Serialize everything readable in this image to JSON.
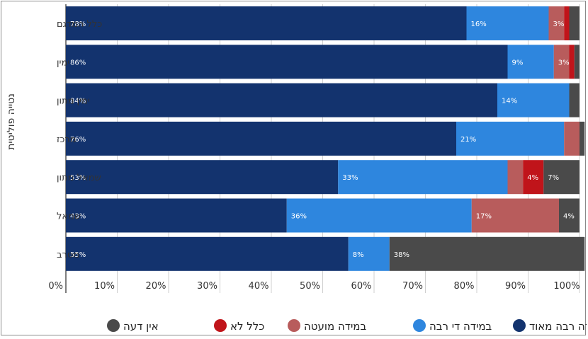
{
  "chart_data": {
    "type": "bar",
    "orientation": "horizontal",
    "stacked": true,
    "ylabel": "נטייה פוליטית",
    "categories": [
      "כלל המדגם",
      "ימין",
      "ימין מתון",
      "מרכז",
      "שמאל מתון",
      "שמאל",
      "מסרב"
    ],
    "series": [
      {
        "name": "במידה רבה מאוד",
        "color": "#13336e",
        "values": [
          78,
          86,
          84,
          76,
          53,
          43,
          55
        ],
        "labels": [
          "78%",
          "86%",
          "84%",
          "76%",
          "53%",
          "43%",
          "55%"
        ]
      },
      {
        "name": "במידה די רבה",
        "color": "#2e86de",
        "values": [
          16,
          9,
          14,
          21,
          33,
          36,
          8
        ],
        "labels": [
          "16%",
          "9%",
          "14%",
          "21%",
          "33%",
          "36%",
          "8%"
        ]
      },
      {
        "name": "במידה מועטה",
        "color": "#b85c5c",
        "values": [
          3,
          3,
          0,
          3,
          3,
          17,
          0
        ],
        "labels": [
          "3%",
          "3%",
          "",
          "",
          "",
          "17%",
          ""
        ]
      },
      {
        "name": "כלל לא",
        "color": "#c0141a",
        "values": [
          1,
          1,
          0,
          0,
          4,
          0,
          0
        ],
        "labels": [
          "",
          "",
          "",
          "",
          "4%",
          "",
          ""
        ]
      },
      {
        "name": "אין דעה",
        "color": "#4a4a4a",
        "values": [
          2,
          1,
          2,
          1,
          7,
          4,
          38
        ],
        "labels": [
          "",
          "",
          "",
          "",
          "7%",
          "4%",
          "38%"
        ]
      }
    ],
    "xlim": [
      0,
      100
    ],
    "xticks": [
      "0%",
      "10%",
      "20%",
      "30%",
      "40%",
      "50%",
      "60%",
      "70%",
      "80%",
      "90%",
      "100%"
    ],
    "grid": true,
    "legend_position": "bottom"
  }
}
